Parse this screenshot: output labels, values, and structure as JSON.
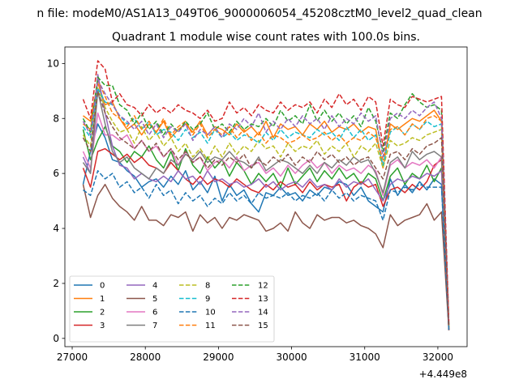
{
  "figure": {
    "suptitle": "n file: modeM0/AS1A13_049T06_9000006054_45208cztM0_level2_quad_clean",
    "offset_label": "+4.449e8"
  },
  "chart_data": {
    "type": "line",
    "title": "Quadrant 1 module wise count rates with 100.0s bins.",
    "xlabel": "",
    "ylabel": "",
    "xlim": [
      26900,
      32400
    ],
    "ylim": [
      -0.3,
      10.6
    ],
    "x_offset": 444900000,
    "x_ticks": [
      27000,
      28000,
      29000,
      30000,
      31000,
      32000
    ],
    "x_tick_labels": [
      "27000",
      "28000",
      "29000",
      "30000",
      "31000",
      "32000"
    ],
    "y_ticks": [
      0,
      2,
      4,
      6,
      8,
      10
    ],
    "y_tick_labels": [
      "0",
      "2",
      "4",
      "6",
      "8",
      "10"
    ],
    "grid": false,
    "legend_position": "lower-left",
    "legend_columns": 4,
    "x": [
      27150,
      27250,
      27350,
      27450,
      27550,
      27650,
      27750,
      27850,
      27950,
      28050,
      28150,
      28250,
      28350,
      28450,
      28550,
      28650,
      28750,
      28850,
      28950,
      29050,
      29150,
      29250,
      29350,
      29450,
      29550,
      29650,
      29750,
      29850,
      29950,
      30050,
      30150,
      30250,
      30350,
      30450,
      30550,
      30650,
      30750,
      30850,
      30950,
      31050,
      31150,
      31250,
      31350,
      31450,
      31550,
      31650,
      31750,
      31850,
      31950,
      32050,
      32150
    ],
    "series": [
      {
        "name": "0",
        "color": "#1f77b4",
        "dashed": false,
        "values": [
          5.6,
          6.8,
          7.8,
          7.3,
          6.5,
          6.4,
          6.1,
          5.9,
          5.5,
          5.7,
          5.8,
          5.5,
          5.9,
          5.6,
          6.1,
          5.4,
          5.7,
          5.3,
          5.9,
          5.0,
          5.6,
          5.2,
          5.4,
          4.9,
          4.6,
          5.3,
          5.2,
          5.5,
          5.2,
          5.3,
          5.0,
          5.4,
          5.2,
          5.5,
          5.4,
          5.7,
          5.6,
          5.2,
          5.5,
          5.0,
          4.8,
          4.6,
          5.8,
          5.2,
          5.6,
          5.3,
          5.7,
          5.4,
          5.8,
          5.6,
          0.3
        ]
      },
      {
        "name": "1",
        "color": "#ff7f0e",
        "dashed": false,
        "values": [
          8.1,
          7.9,
          9.3,
          8.5,
          8.6,
          8.0,
          7.6,
          7.8,
          7.4,
          7.8,
          7.5,
          7.9,
          7.3,
          7.6,
          7.8,
          7.5,
          7.9,
          7.4,
          7.7,
          7.6,
          7.4,
          7.8,
          7.5,
          7.7,
          7.4,
          7.9,
          7.3,
          7.8,
          7.6,
          7.7,
          7.4,
          7.8,
          7.6,
          7.9,
          7.5,
          7.7,
          7.6,
          7.8,
          7.5,
          7.7,
          7.6,
          6.2,
          7.8,
          7.6,
          7.8,
          8.0,
          7.9,
          8.1,
          8.3,
          7.9,
          0.4
        ]
      },
      {
        "name": "2",
        "color": "#2ca02c",
        "dashed": false,
        "values": [
          7.6,
          6.5,
          7.2,
          7.7,
          7.0,
          6.8,
          6.4,
          6.8,
          6.6,
          7.0,
          6.5,
          6.2,
          6.8,
          6.1,
          6.9,
          6.3,
          6.0,
          6.6,
          6.2,
          6.5,
          5.9,
          6.4,
          6.1,
          5.6,
          6.0,
          5.7,
          6.0,
          5.5,
          6.2,
          5.6,
          5.9,
          6.2,
          5.7,
          6.1,
          5.8,
          6.2,
          5.8,
          6.0,
          5.6,
          6.0,
          5.8,
          5.0,
          5.9,
          6.2,
          5.6,
          6.0,
          5.8,
          6.3,
          5.7,
          6.2,
          0.3
        ]
      },
      {
        "name": "3",
        "color": "#d62728",
        "dashed": false,
        "values": [
          6.2,
          5.5,
          6.8,
          6.9,
          6.7,
          6.5,
          6.7,
          6.4,
          6.6,
          6.3,
          6.2,
          6.0,
          6.4,
          6.1,
          5.8,
          5.6,
          5.9,
          5.6,
          5.8,
          5.7,
          5.5,
          5.8,
          5.6,
          5.4,
          5.3,
          5.6,
          5.4,
          5.7,
          5.5,
          5.6,
          5.3,
          5.7,
          5.4,
          5.6,
          5.5,
          5.6,
          5.0,
          5.5,
          5.7,
          5.5,
          5.6,
          4.8,
          5.4,
          5.5,
          5.3,
          5.6,
          5.4,
          5.7,
          6.3,
          6.5,
          0.3
        ]
      },
      {
        "name": "4",
        "color": "#9467bd",
        "dashed": false,
        "values": [
          6.6,
          6.0,
          9.6,
          8.2,
          7.0,
          6.3,
          6.2,
          5.8,
          6.0,
          5.8,
          5.7,
          5.9,
          5.7,
          6.1,
          5.8,
          5.9,
          5.6,
          6.1,
          5.7,
          5.8,
          5.6,
          5.7,
          5.5,
          5.6,
          5.8,
          5.5,
          5.7,
          5.4,
          5.6,
          5.7,
          5.5,
          5.8,
          5.5,
          5.6,
          5.4,
          5.8,
          5.5,
          5.7,
          5.6,
          5.8,
          5.4,
          5.0,
          5.6,
          5.8,
          5.7,
          5.9,
          5.8,
          6.0,
          5.9,
          6.1,
          0.3
        ]
      },
      {
        "name": "5",
        "color": "#8c564b",
        "dashed": false,
        "values": [
          5.6,
          4.4,
          5.2,
          5.6,
          5.1,
          4.8,
          4.6,
          4.3,
          4.8,
          4.3,
          4.3,
          4.1,
          4.5,
          4.4,
          4.6,
          3.9,
          4.5,
          4.2,
          4.4,
          4.0,
          4.4,
          4.3,
          4.5,
          4.4,
          4.3,
          3.9,
          4.0,
          4.2,
          3.9,
          4.6,
          4.2,
          4.0,
          4.5,
          4.3,
          4.4,
          4.4,
          4.2,
          4.3,
          4.1,
          4.0,
          3.8,
          3.3,
          4.5,
          4.1,
          4.3,
          4.4,
          4.5,
          4.9,
          4.3,
          4.6,
          0.3
        ]
      },
      {
        "name": "6",
        "color": "#e377c2",
        "dashed": false,
        "values": [
          6.8,
          6.2,
          8.2,
          7.4,
          7.4,
          7.2,
          7.4,
          6.9,
          7.2,
          6.8,
          7.0,
          6.6,
          6.9,
          6.3,
          6.8,
          6.4,
          6.6,
          6.1,
          6.4,
          6.5,
          6.2,
          6.6,
          6.1,
          6.3,
          6.4,
          6.0,
          6.2,
          5.9,
          6.3,
          6.0,
          6.3,
          6.5,
          6.2,
          6.4,
          6.0,
          6.3,
          6.1,
          6.2,
          6.0,
          6.3,
          6.1,
          5.2,
          6.3,
          6.5,
          6.2,
          6.4,
          6.3,
          6.5,
          6.2,
          6.6,
          0.4
        ]
      },
      {
        "name": "7",
        "color": "#7f7f7f",
        "dashed": false,
        "values": [
          6.4,
          6.0,
          9.0,
          7.8,
          6.8,
          6.4,
          6.6,
          6.2,
          6.0,
          5.8,
          6.2,
          6.0,
          6.5,
          6.3,
          6.7,
          6.5,
          6.8,
          6.4,
          6.6,
          6.5,
          6.8,
          6.5,
          6.4,
          6.2,
          6.6,
          6.1,
          6.3,
          6.5,
          6.4,
          6.2,
          6.0,
          6.3,
          6.0,
          6.4,
          6.2,
          6.5,
          6.3,
          6.6,
          6.4,
          6.5,
          6.0,
          5.3,
          6.4,
          6.6,
          6.2,
          6.8,
          6.5,
          6.7,
          6.8,
          6.6,
          0.4
        ]
      },
      {
        "name": "8",
        "color": "#bcbd22",
        "dashed": true,
        "values": [
          7.4,
          7.0,
          9.1,
          8.4,
          7.9,
          7.5,
          7.6,
          7.1,
          7.7,
          7.2,
          7.5,
          7.0,
          7.3,
          6.8,
          7.1,
          6.6,
          6.9,
          6.5,
          7.0,
          6.6,
          7.1,
          6.7,
          7.0,
          6.8,
          7.2,
          6.9,
          7.0,
          6.6,
          7.1,
          6.8,
          7.0,
          6.9,
          7.2,
          6.7,
          7.0,
          6.8,
          7.1,
          6.6,
          7.0,
          6.8,
          7.1,
          6.2,
          7.2,
          7.0,
          7.1,
          7.3,
          7.2,
          7.4,
          7.5,
          7.6,
          0.4
        ]
      },
      {
        "name": "9",
        "color": "#17becf",
        "dashed": true,
        "values": [
          7.7,
          7.3,
          9.1,
          8.6,
          8.5,
          8.1,
          7.8,
          8.0,
          7.6,
          7.9,
          7.4,
          7.6,
          7.5,
          7.2,
          7.6,
          7.3,
          7.5,
          7.1,
          7.6,
          7.3,
          7.5,
          7.2,
          7.4,
          7.3,
          7.1,
          7.5,
          7.2,
          7.6,
          7.3,
          7.5,
          7.4,
          7.3,
          7.6,
          7.4,
          7.5,
          7.2,
          7.7,
          7.3,
          7.6,
          7.2,
          7.4,
          6.3,
          7.5,
          7.7,
          7.4,
          7.8,
          7.6,
          7.9,
          7.7,
          7.8,
          0.4
        ]
      },
      {
        "name": "10",
        "color": "#1f77b4",
        "dashed": true,
        "values": [
          5.4,
          5.2,
          6.1,
          5.8,
          6.0,
          5.5,
          5.7,
          5.3,
          5.5,
          5.1,
          5.6,
          5.2,
          5.4,
          4.9,
          5.3,
          5.0,
          5.2,
          4.8,
          5.1,
          4.9,
          5.3,
          5.0,
          5.2,
          4.9,
          5.3,
          5.1,
          5.2,
          5.1,
          5.3,
          5.0,
          5.2,
          5.1,
          5.3,
          5.0,
          5.4,
          5.1,
          5.3,
          5.0,
          5.2,
          5.1,
          5.0,
          4.3,
          5.4,
          5.3,
          5.5,
          5.4,
          5.6,
          5.5,
          5.5,
          5.5,
          0.3
        ]
      },
      {
        "name": "11",
        "color": "#ff7f0e",
        "dashed": true,
        "values": [
          7.8,
          7.6,
          9.4,
          8.8,
          8.2,
          8.0,
          7.7,
          8.1,
          7.6,
          7.9,
          7.5,
          8.0,
          7.4,
          7.7,
          7.9,
          7.4,
          7.8,
          7.3,
          7.6,
          7.4,
          7.7,
          7.3,
          7.6,
          7.2,
          7.5,
          7.1,
          7.4,
          7.3,
          7.1,
          7.2,
          7.4,
          7.2,
          7.3,
          7.5,
          7.2,
          7.4,
          7.1,
          7.3,
          7.2,
          7.5,
          7.3,
          6.5,
          7.6,
          7.7,
          7.4,
          7.8,
          7.6,
          8.0,
          8.1,
          7.9,
          0.5
        ]
      },
      {
        "name": "12",
        "color": "#2ca02c",
        "dashed": true,
        "values": [
          8.0,
          7.5,
          9.5,
          9.2,
          9.2,
          8.5,
          8.3,
          7.8,
          8.2,
          7.6,
          7.9,
          7.4,
          7.8,
          7.5,
          7.9,
          7.6,
          7.8,
          8.2,
          7.6,
          7.8,
          7.5,
          7.9,
          7.6,
          7.8,
          7.7,
          8.0,
          7.7,
          8.3,
          7.9,
          8.1,
          7.8,
          8.5,
          7.9,
          8.3,
          7.9,
          8.2,
          7.8,
          8.1,
          7.7,
          8.4,
          7.9,
          6.8,
          8.2,
          8.0,
          8.5,
          8.9,
          8.6,
          8.4,
          8.5,
          8.3,
          0.5
        ]
      },
      {
        "name": "13",
        "color": "#d62728",
        "dashed": true,
        "values": [
          8.7,
          8.0,
          10.1,
          9.8,
          8.6,
          8.9,
          8.5,
          8.4,
          8.1,
          8.5,
          8.2,
          8.4,
          8.2,
          8.5,
          8.3,
          8.2,
          8.0,
          8.3,
          7.9,
          8.0,
          8.6,
          8.2,
          8.4,
          8.1,
          8.5,
          8.3,
          8.2,
          8.6,
          8.3,
          8.5,
          8.4,
          8.6,
          8.2,
          8.7,
          8.4,
          8.9,
          8.5,
          8.7,
          8.3,
          8.8,
          8.6,
          7.0,
          8.7,
          8.5,
          8.4,
          8.8,
          8.7,
          8.6,
          8.7,
          8.8,
          0.6
        ]
      },
      {
        "name": "14",
        "color": "#9467bd",
        "dashed": true,
        "values": [
          7.9,
          7.4,
          9.4,
          8.9,
          8.5,
          8.1,
          7.9,
          7.6,
          7.9,
          7.4,
          7.8,
          7.3,
          7.7,
          7.5,
          7.8,
          7.2,
          7.6,
          7.4,
          7.7,
          7.3,
          7.8,
          7.6,
          8.0,
          7.7,
          8.2,
          7.5,
          7.9,
          7.6,
          8.0,
          7.7,
          8.1,
          7.8,
          8.0,
          7.6,
          8.1,
          7.7,
          8.0,
          7.8,
          8.2,
          7.9,
          8.1,
          6.6,
          8.0,
          8.2,
          8.0,
          8.3,
          8.1,
          8.4,
          8.6,
          8.0,
          0.5
        ]
      },
      {
        "name": "15",
        "color": "#8c564b",
        "dashed": true,
        "values": [
          7.3,
          6.8,
          9.0,
          8.2,
          7.7,
          7.3,
          7.1,
          6.9,
          7.2,
          6.8,
          7.1,
          6.6,
          6.9,
          6.5,
          6.8,
          6.4,
          6.6,
          6.2,
          6.5,
          6.3,
          6.6,
          6.4,
          6.7,
          6.2,
          6.5,
          6.3,
          6.6,
          6.4,
          6.7,
          6.3,
          6.6,
          6.4,
          6.8,
          6.5,
          6.7,
          6.4,
          6.6,
          6.3,
          6.5,
          6.6,
          6.2,
          5.8,
          6.7,
          6.8,
          6.5,
          6.9,
          6.7,
          7.0,
          7.1,
          7.3,
          0.4
        ]
      }
    ]
  }
}
